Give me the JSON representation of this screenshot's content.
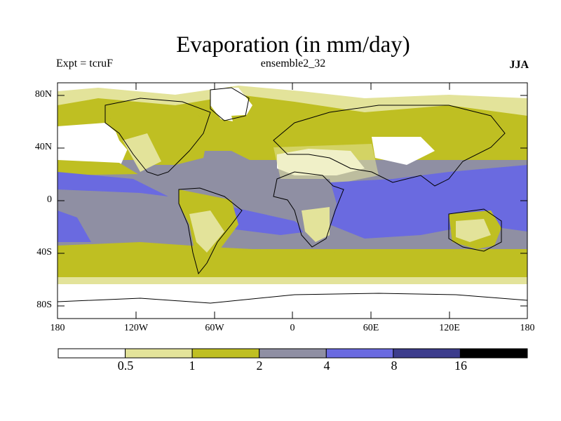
{
  "title": "Evaporation (in mm/day)",
  "experiment": "Expt = tcruF",
  "ensemble": "ensemble2_32",
  "season": "JJA",
  "map": {
    "projection": "cylindrical equidistant",
    "lat_ticks": [
      "80N",
      "40N",
      "0",
      "40S",
      "80S"
    ],
    "lon_ticks": [
      "180",
      "120W",
      "60W",
      "0",
      "60E",
      "120E",
      "180"
    ]
  },
  "colorbar": {
    "levels": [
      "0.5",
      "1",
      "2",
      "4",
      "8",
      "16"
    ],
    "colors": [
      "#ffffff",
      "#e3e39a",
      "#bfbf22",
      "#8f8fa3",
      "#6a6ae0",
      "#3c3c8c",
      "#000000"
    ]
  }
}
